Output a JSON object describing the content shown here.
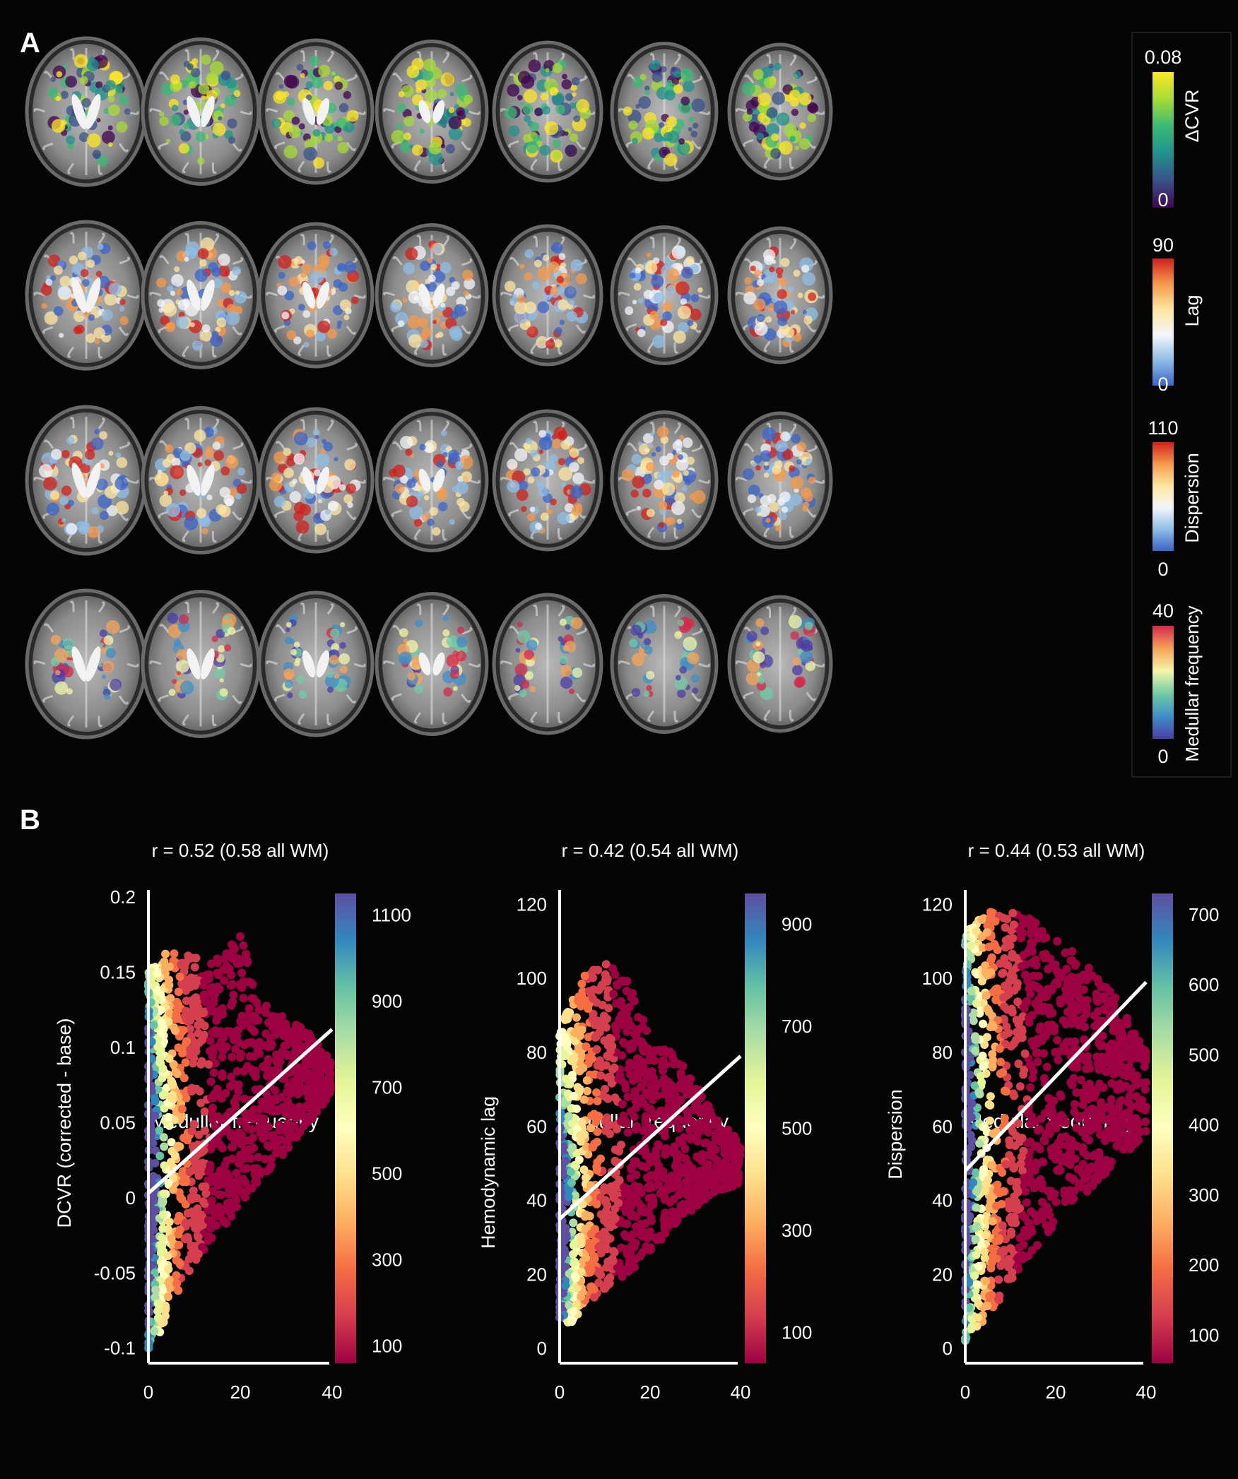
{
  "panel_a": {
    "label": "A",
    "rows": [
      {
        "map": "dcvr",
        "colorbar_label": "ΔCVR",
        "max": "0.08",
        "min": "0",
        "colormap": [
          "#40054f",
          "#3b528b",
          "#21918c",
          "#3aba76",
          "#a5db36",
          "#fde725"
        ]
      },
      {
        "map": "lag",
        "colorbar_label": "Lag",
        "max": "90",
        "min": "0",
        "colormap": [
          "#3b64c8",
          "#8fbde6",
          "#f3f6fb",
          "#fde7a0",
          "#f59a4c",
          "#d0201c"
        ]
      },
      {
        "map": "dispersion",
        "colorbar_label": "Dispersion",
        "max": "110",
        "min": "0",
        "colormap": [
          "#3b64c8",
          "#8fbde6",
          "#f3f6fb",
          "#fde7a0",
          "#f59a4c",
          "#d0201c"
        ]
      },
      {
        "map": "medullar",
        "colorbar_label": "Medullar frequency",
        "max": "40",
        "min": "0",
        "colormap": [
          "#4a3ea6",
          "#3f8fc7",
          "#72cba7",
          "#f3f5a8",
          "#f6a35a",
          "#d2294b"
        ]
      }
    ],
    "slices_per_row": 7
  },
  "panel_b": {
    "label": "B",
    "spectral_colormap": [
      "#9e0142",
      "#d53e4f",
      "#f46d43",
      "#fdae61",
      "#fee08b",
      "#ffffbf",
      "#e6f598",
      "#abdda4",
      "#66c2a5",
      "#3288bd",
      "#5e4fa2"
    ]
  },
  "chart_data": [
    {
      "type": "scatter",
      "subtype": "hexbin density with regression line",
      "title": "r = 0.52 (0.58 all WM)",
      "xlabel": "Medullar frequency",
      "ylabel": "DCVR (corrected - base)",
      "xlim": [
        0,
        40
      ],
      "ylim": [
        -0.11,
        0.2
      ],
      "xticks": [
        "0",
        "20",
        "40"
      ],
      "yticks": [
        "0.2",
        "0.15",
        "0.1",
        "0.05",
        "0",
        "-0.05",
        "-0.1"
      ],
      "regression_line": {
        "x": [
          0,
          40
        ],
        "y": [
          0.003,
          0.112
        ]
      },
      "colorbar": {
        "ticks": [
          "1100",
          "900",
          "700",
          "500",
          "300",
          "100"
        ],
        "range": [
          60,
          1150
        ]
      },
      "point_cloud": {
        "x": [
          0,
          2,
          5,
          10,
          15,
          20,
          25,
          30,
          35,
          40
        ],
        "y_low": [
          -0.105,
          -0.095,
          -0.07,
          -0.045,
          -0.025,
          -0.005,
          0.015,
          0.03,
          0.05,
          0.07
        ],
        "y_high": [
          0.15,
          0.16,
          0.165,
          0.16,
          0.16,
          0.175,
          0.13,
          0.12,
          0.11,
          0.09
        ],
        "y_center": [
          0.015,
          0.02,
          0.04,
          0.055,
          0.06,
          0.065,
          0.07,
          0.075,
          0.08,
          0.08
        ]
      }
    },
    {
      "type": "scatter",
      "subtype": "hexbin density with regression line",
      "title": "r = 0.42 (0.54 all WM)",
      "xlabel": "Medullar frequency",
      "ylabel": "Hemodynamic lag",
      "xlim": [
        0,
        40
      ],
      "ylim": [
        -4,
        122
      ],
      "xticks": [
        "0",
        "20",
        "40"
      ],
      "yticks": [
        "120",
        "100",
        "80",
        "60",
        "40",
        "20",
        "0"
      ],
      "regression_line": {
        "x": [
          0,
          40
        ],
        "y": [
          35,
          79
        ]
      },
      "colorbar": {
        "ticks": [
          "900",
          "700",
          "500",
          "300",
          "100"
        ],
        "range": [
          40,
          960
        ]
      },
      "point_cloud": {
        "x": [
          0,
          2,
          5,
          10,
          15,
          20,
          25,
          30,
          35,
          40
        ],
        "y_low": [
          8,
          6,
          10,
          16,
          20,
          26,
          32,
          38,
          42,
          44
        ],
        "y_high": [
          86,
          92,
          100,
          106,
          100,
          85,
          80,
          72,
          62,
          56
        ],
        "y_center": [
          30,
          38,
          46,
          52,
          55,
          55,
          55,
          52,
          50,
          50
        ]
      }
    },
    {
      "type": "scatter",
      "subtype": "hexbin density with regression line",
      "title": "r = 0.44 (0.53 all WM)",
      "xlabel": "Medullar frequency",
      "ylabel": "Dispersion",
      "xlim": [
        0,
        40
      ],
      "ylim": [
        -4,
        122
      ],
      "xticks": [
        "0",
        "20",
        "40"
      ],
      "yticks": [
        "120",
        "100",
        "80",
        "60",
        "40",
        "20",
        "0"
      ],
      "regression_line": {
        "x": [
          0,
          40
        ],
        "y": [
          48,
          99
        ]
      },
      "colorbar": {
        "ticks": [
          "700",
          "600",
          "500",
          "400",
          "300",
          "200",
          "100"
        ],
        "range": [
          60,
          730
        ]
      },
      "point_cloud": {
        "x": [
          0,
          2,
          5,
          10,
          15,
          20,
          25,
          30,
          35,
          40
        ],
        "y_low": [
          2,
          4,
          8,
          18,
          26,
          34,
          40,
          46,
          52,
          58
        ],
        "y_high": [
          112,
          115,
          118,
          118,
          116,
          112,
          106,
          100,
          92,
          80
        ],
        "y_center": [
          55,
          58,
          62,
          66,
          70,
          72,
          72,
          72,
          72,
          70
        ]
      }
    }
  ]
}
